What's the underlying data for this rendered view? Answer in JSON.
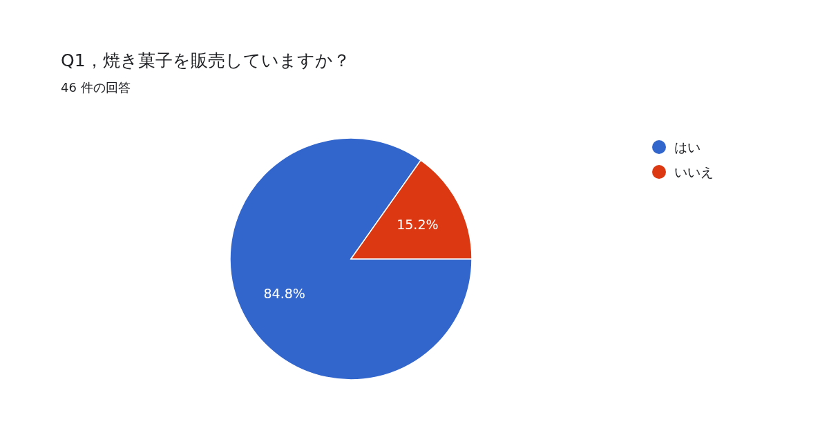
{
  "chart_data": {
    "type": "pie",
    "title": "Q1，焼き菓子を販売していますか？",
    "subtitle": "46 件の回答",
    "categories": [
      "はい",
      "いいえ"
    ],
    "values": [
      84.8,
      15.2
    ],
    "colors": [
      "#3366cc",
      "#dc3912"
    ],
    "value_labels": [
      "84.8%",
      "15.2%"
    ],
    "legend": "top right"
  }
}
